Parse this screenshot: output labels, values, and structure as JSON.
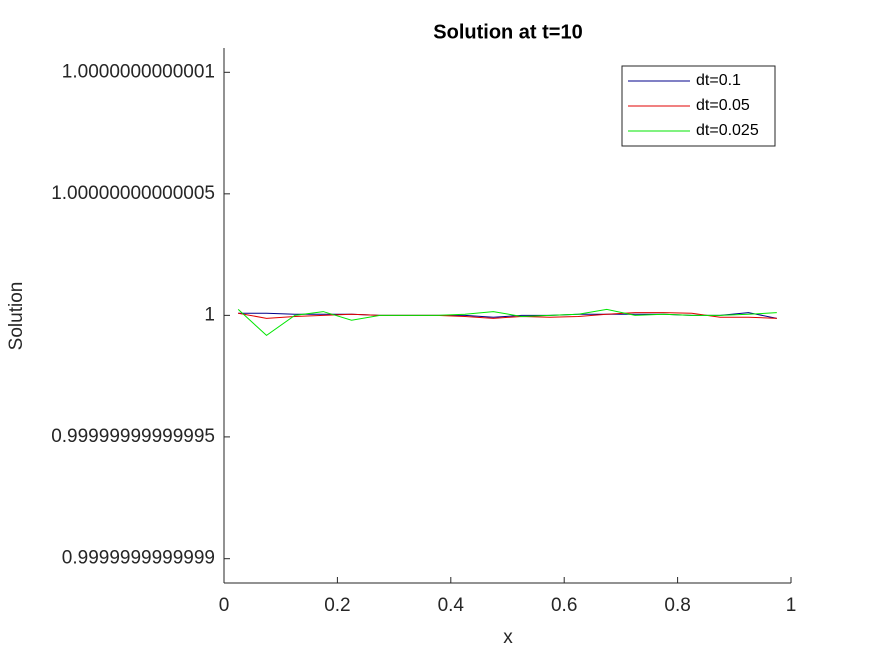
{
  "chart_data": {
    "type": "line",
    "title": "Solution at t=10",
    "xlabel": "x",
    "ylabel": "Solution",
    "x": [
      0.025,
      0.075,
      0.125,
      0.175,
      0.225,
      0.275,
      0.325,
      0.375,
      0.425,
      0.475,
      0.525,
      0.575,
      0.625,
      0.675,
      0.725,
      0.775,
      0.825,
      0.875,
      0.925,
      0.975
    ],
    "series": [
      {
        "name": "dt=0.1",
        "color": "#00008b",
        "values": [
          1.0000000000000009,
          1.0000000000000009,
          1.0000000000000004,
          1.0000000000000004,
          1.0000000000000004,
          1,
          1,
          1,
          1,
          0.9999999999999992,
          1,
          1,
          1.0000000000000004,
          1.0000000000000004,
          1.0000000000000004,
          1.0000000000000004,
          1,
          1,
          1.000000000000001,
          0.9999999999999988
        ]
      },
      {
        "name": "dt=0.05",
        "color": "#e00000",
        "values": [
          1.0000000000000009,
          0.9999999999999988,
          0.9999999999999996,
          1,
          1.0000000000000004,
          1,
          1,
          1,
          0.9999999999999996,
          0.9999999999999988,
          0.9999999999999996,
          0.9999999999999992,
          0.9999999999999996,
          1.0000000000000004,
          1.000000000000001,
          1.000000000000001,
          1.0000000000000009,
          0.9999999999999992,
          0.9999999999999992,
          0.9999999999999988
        ]
      },
      {
        "name": "dt=0.025",
        "color": "#00e600",
        "values": [
          1.0000000000000024,
          0.9999999999999918,
          1,
          1.0000000000000016,
          0.999999999999998,
          1,
          1,
          1,
          1.0000000000000004,
          1.0000000000000016,
          0.9999999999999996,
          1,
          1.0000000000000004,
          1.0000000000000024,
          1,
          1.0000000000000004,
          1,
          1,
          1.0000000000000004,
          1.000000000000001
        ]
      }
    ],
    "xlim": [
      0,
      1
    ],
    "xticks": [
      0,
      0.2,
      0.4,
      0.6,
      0.8,
      1
    ],
    "ylim": [
      0.99999999999989,
      1.00000000000011
    ],
    "yticks": [
      0.9999999999999,
      0.99999999999995,
      1,
      1.00000000000005,
      1.0000000000001
    ],
    "legend": "upper right"
  }
}
